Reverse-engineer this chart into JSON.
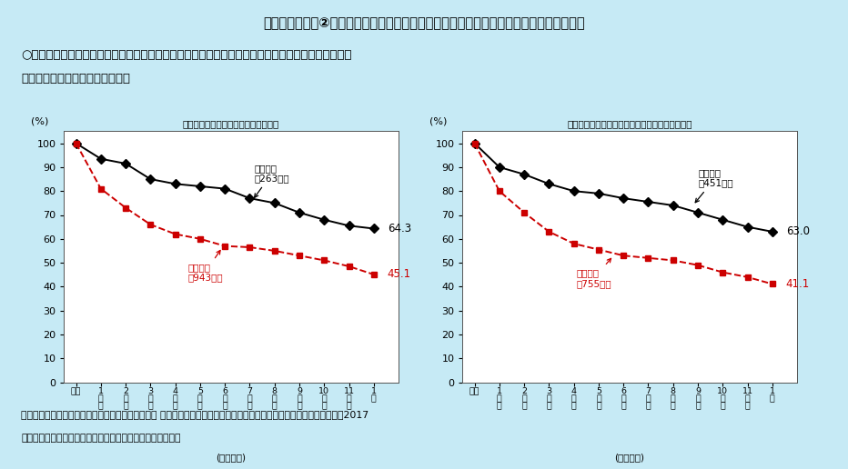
{
  "bg_color": "#c6eaf5",
  "plot_bg_color": "#ffffff",
  "title_main": "コラム１－３－②図　精神障害者における就労前訓練、地域の就労支援機関の活用の効果",
  "subtitle_line1": "○　就労前訓練、地域の就労支援機関との連携を実施すると、未実施に比べて職場定着率は大きく改",
  "subtitle_line2": "　　善する可能性が示喔される。",
  "footnote_line1": "資料出所　（独）高齢・障害・求職者雇用支援機構 障害者職業総合センター「障害者の就業状況等に関する調査研究」（2017",
  "footnote_line2": "　　年）をもとに厚生労働省労働政策担当参事官室にて作成",
  "left_title": "就労前訓練の受講の有無別職場定着率",
  "right_title": "地域の就労支援機関との連携の有無別職場定着率",
  "ylabel": "(%)",
  "xlabel": "(経過期間)",
  "xtick_labels": [
    "就職",
    "1\nか\n月",
    "2\nか\n月",
    "3\nか\n月",
    "4\nか\n月",
    "5\nか\n月",
    "6\nか\n月",
    "7\nか\n月",
    "8\nか\n月",
    "9\nか\n月",
    "10\nか\n月",
    "11\nか\n月",
    "1\n年"
  ],
  "left_series1": [
    100,
    93.5,
    91.5,
    85,
    83,
    82,
    81,
    77,
    75,
    71,
    68,
    65.5,
    64.3
  ],
  "left_series2": [
    100,
    81,
    73,
    66,
    62,
    60,
    57,
    56.5,
    55,
    53,
    51,
    48.5,
    45.1
  ],
  "right_series1": [
    100,
    90,
    87,
    83,
    80,
    79,
    77,
    75.5,
    74,
    71,
    68,
    65,
    63.0
  ],
  "right_series2": [
    100,
    80,
    71,
    63,
    58,
    55.5,
    53,
    52,
    51,
    49,
    46,
    44,
    41.1
  ],
  "left_label1": "訓練あり\n（263人）",
  "left_label2": "訓練なし\n（943人）",
  "right_label1": "連携あり\n（451人）",
  "right_label2": "連携なし\n（755人）",
  "left_end1": "64.3",
  "left_end2": "45.1",
  "right_end1": "63.0",
  "right_end2": "41.1",
  "series1_color": "#000000",
  "series2_color": "#cc0000",
  "ylim_max": 105,
  "yticks": [
    0,
    10,
    20,
    30,
    40,
    50,
    60,
    70,
    80,
    90,
    100
  ]
}
